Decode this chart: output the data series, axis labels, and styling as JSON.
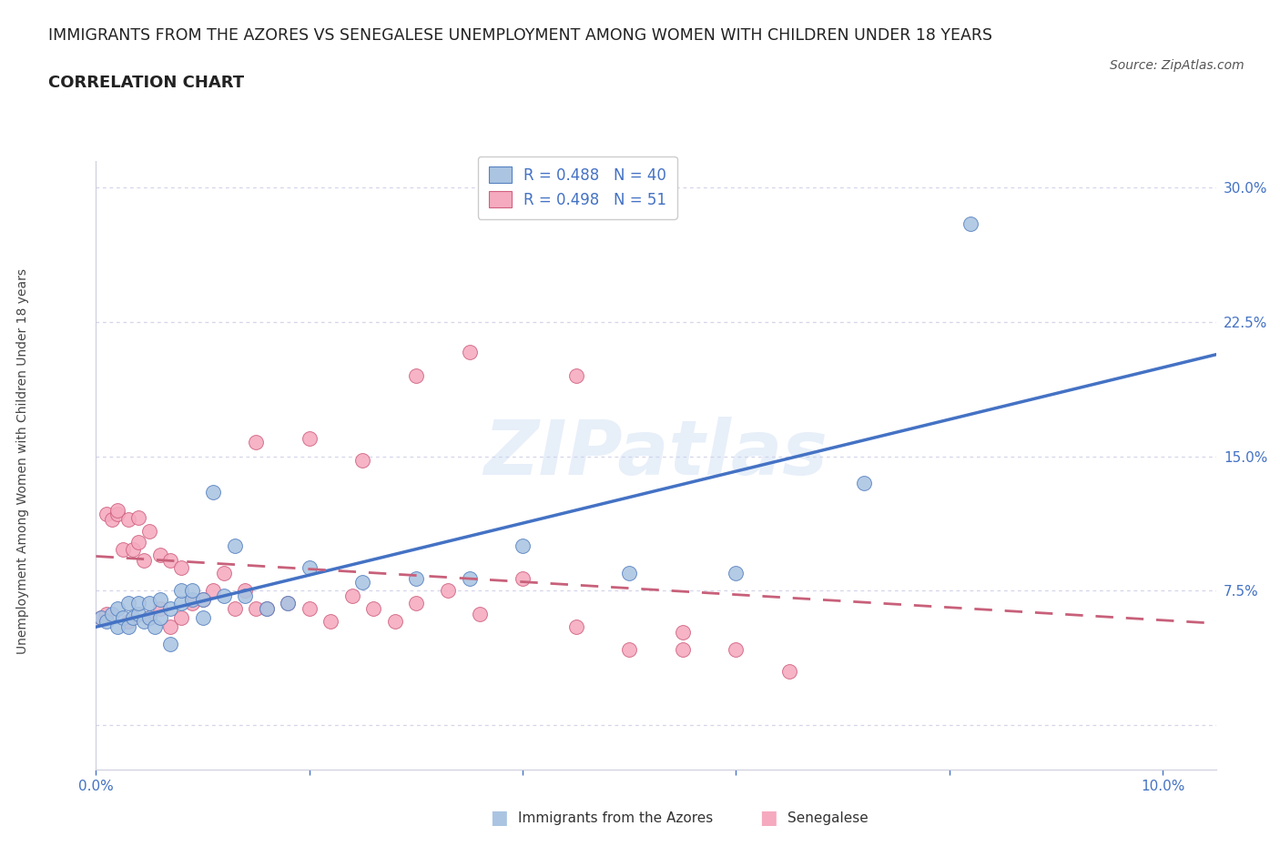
{
  "title": "IMMIGRANTS FROM THE AZORES VS SENEGALESE UNEMPLOYMENT AMONG WOMEN WITH CHILDREN UNDER 18 YEARS",
  "subtitle": "CORRELATION CHART",
  "source": "Source: ZipAtlas.com",
  "ylabel": "Unemployment Among Women with Children Under 18 years",
  "xlim": [
    0.0,
    0.105
  ],
  "ylim": [
    -0.025,
    0.315
  ],
  "yticks": [
    0.0,
    0.075,
    0.15,
    0.225,
    0.3
  ],
  "ytick_labels": [
    "",
    "7.5%",
    "15.0%",
    "22.5%",
    "30.0%"
  ],
  "xticks": [
    0.0,
    0.1
  ],
  "xtick_labels": [
    "0.0%",
    "10.0%"
  ],
  "watermark": "ZIPatlas",
  "blue_fill": "#aac4e2",
  "blue_edge": "#5580c0",
  "pink_fill": "#f5aabf",
  "pink_edge": "#d06080",
  "blue_line_color": "#4472c4",
  "pink_line_color": "#c8607a",
  "axis_label_color": "#4472c4",
  "grid_color": "#d5d5ea",
  "R_blue": "0.488",
  "N_blue": "40",
  "R_pink": "0.498",
  "N_pink": "51",
  "blue_scatter_x": [
    0.0005,
    0.001,
    0.0015,
    0.002,
    0.002,
    0.0025,
    0.003,
    0.003,
    0.0035,
    0.004,
    0.004,
    0.0045,
    0.005,
    0.005,
    0.0055,
    0.006,
    0.006,
    0.007,
    0.007,
    0.008,
    0.008,
    0.009,
    0.009,
    0.01,
    0.01,
    0.011,
    0.012,
    0.013,
    0.014,
    0.016,
    0.018,
    0.02,
    0.025,
    0.03,
    0.035,
    0.04,
    0.05,
    0.06,
    0.072,
    0.082
  ],
  "blue_scatter_y": [
    0.06,
    0.058,
    0.062,
    0.055,
    0.065,
    0.06,
    0.055,
    0.068,
    0.06,
    0.062,
    0.068,
    0.058,
    0.06,
    0.068,
    0.055,
    0.06,
    0.07,
    0.045,
    0.065,
    0.068,
    0.075,
    0.07,
    0.075,
    0.06,
    0.07,
    0.13,
    0.072,
    0.1,
    0.072,
    0.065,
    0.068,
    0.088,
    0.08,
    0.082,
    0.082,
    0.1,
    0.085,
    0.085,
    0.135,
    0.28
  ],
  "pink_scatter_x": [
    0.0005,
    0.001,
    0.001,
    0.0015,
    0.002,
    0.002,
    0.0025,
    0.003,
    0.003,
    0.0035,
    0.004,
    0.004,
    0.0045,
    0.005,
    0.005,
    0.006,
    0.006,
    0.007,
    0.007,
    0.008,
    0.008,
    0.009,
    0.01,
    0.011,
    0.012,
    0.013,
    0.014,
    0.015,
    0.016,
    0.018,
    0.02,
    0.022,
    0.024,
    0.026,
    0.028,
    0.03,
    0.033,
    0.036,
    0.04,
    0.045,
    0.05,
    0.055,
    0.06,
    0.015,
    0.02,
    0.025,
    0.03,
    0.035,
    0.045,
    0.055,
    0.065
  ],
  "pink_scatter_y": [
    0.06,
    0.062,
    0.118,
    0.115,
    0.118,
    0.12,
    0.098,
    0.058,
    0.115,
    0.098,
    0.102,
    0.116,
    0.092,
    0.06,
    0.108,
    0.065,
    0.095,
    0.055,
    0.092,
    0.06,
    0.088,
    0.068,
    0.07,
    0.075,
    0.085,
    0.065,
    0.075,
    0.065,
    0.065,
    0.068,
    0.065,
    0.058,
    0.072,
    0.065,
    0.058,
    0.068,
    0.075,
    0.062,
    0.082,
    0.055,
    0.042,
    0.042,
    0.042,
    0.158,
    0.16,
    0.148,
    0.195,
    0.208,
    0.195,
    0.052,
    0.03
  ]
}
